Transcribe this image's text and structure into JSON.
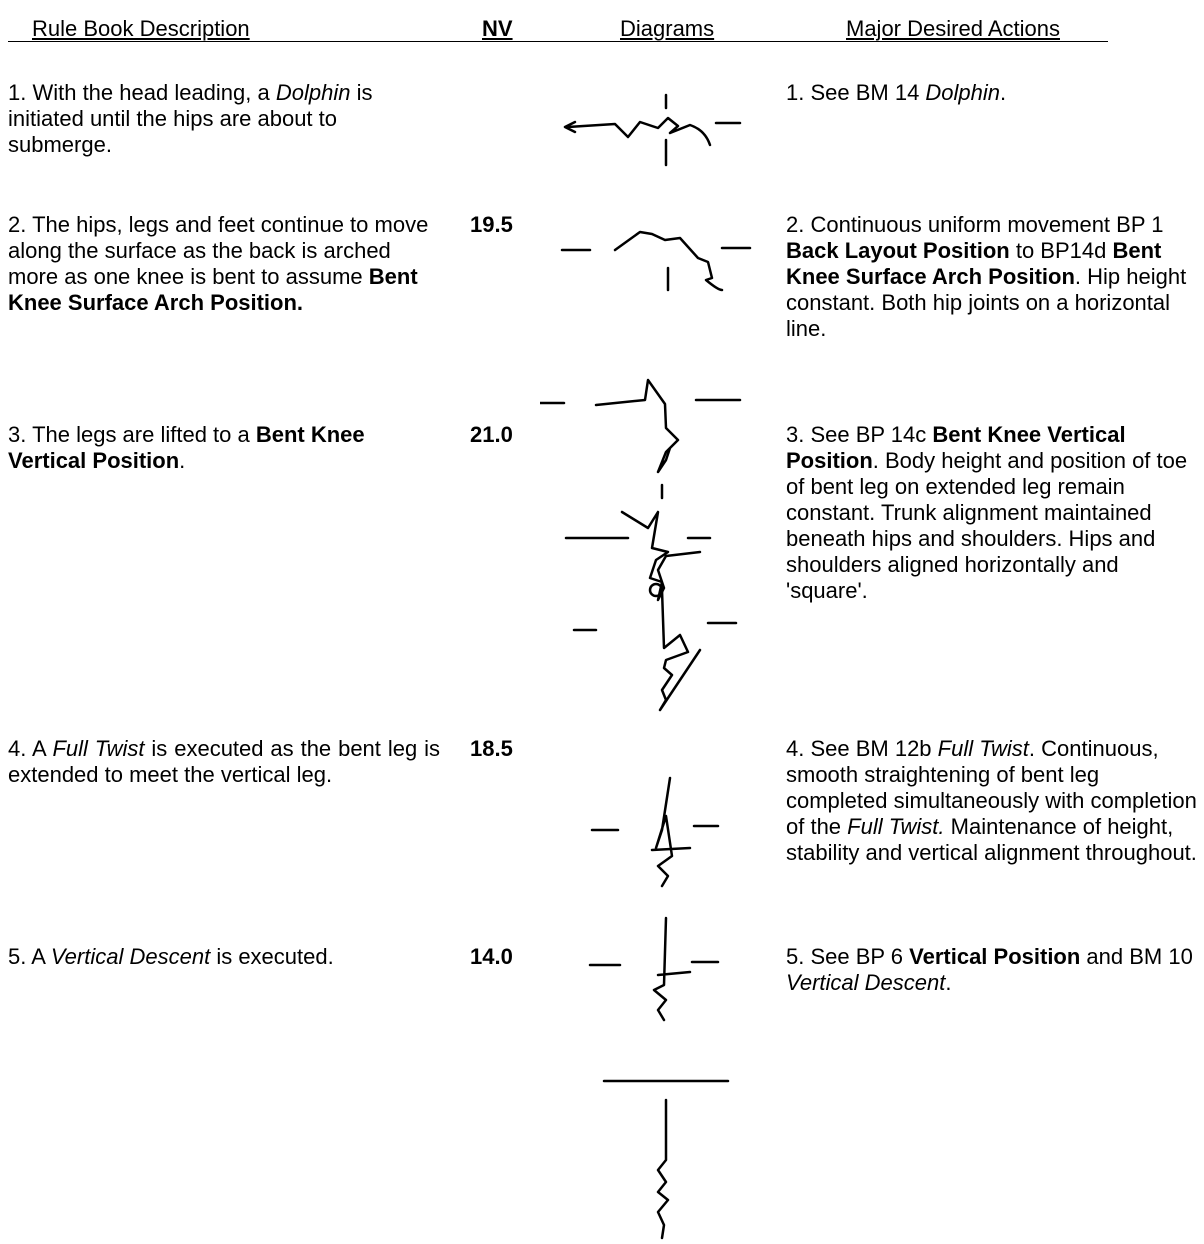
{
  "header": {
    "description": "Rule Book Description",
    "nv": "NV",
    "diagrams": "Diagrams",
    "actions": "Major Desired Actions"
  },
  "rows": [
    {
      "description": [
        {
          "text": "1.  With the head leading, a "
        },
        {
          "text": "Dolphin",
          "italic": true
        },
        {
          "text": " is initiated until the hips are about to submerge."
        }
      ],
      "actions": [
        {
          "text": "1. See BM 14 "
        },
        {
          "text": "Dolphin",
          "italic": true
        },
        {
          "text": "."
        }
      ]
    },
    {
      "description": [
        {
          "text": "2.  The hips, legs and feet continue to move along the surface as the back is arched more as one knee is bent to assume "
        },
        {
          "text": "Bent Knee Surface Arch Position.",
          "bold": true
        }
      ],
      "nv": "19.5",
      "actions": [
        {
          "text": "2.  Continuous uniform movement BP 1 "
        },
        {
          "text": "Back Layout Position",
          "bold": true
        },
        {
          "text": " to BP14d "
        },
        {
          "text": "Bent Knee Surface Arch Position",
          "bold": true
        },
        {
          "text": ". Hip height constant.  Both hip joints on a horizontal line."
        }
      ]
    },
    {
      "description": [
        {
          "text": "3.  The legs are lifted to a "
        },
        {
          "text": "Bent Knee Vertical Position",
          "bold": true
        },
        {
          "text": "."
        }
      ],
      "nv": "21.0",
      "actions": [
        {
          "text": "3. See BP 14c "
        },
        {
          "text": "Bent Knee Vertical Position",
          "bold": true
        },
        {
          "text": ".  Body height and position of toe of bent leg on extended leg remain constant.  Trunk alignment maintained beneath hips and shoulders.  Hips and shoulders aligned horizontally and 'square'."
        }
      ]
    },
    {
      "description": [
        {
          "text": "4. A "
        },
        {
          "text": "Full Twist",
          "italic": true
        },
        {
          "text": " is executed as the bent leg is extended to meet the vertical leg."
        }
      ],
      "nv": "18.5",
      "actions": [
        {
          "text": "4. See BM 12b "
        },
        {
          "text": "Full Twist",
          "italic": true
        },
        {
          "text": ".  Continuous, smooth straightening of bent leg completed simultaneously with completion of the "
        },
        {
          "text": "Full Twist.",
          "italic": true
        },
        {
          "text": "  Maintenance of height, stability and vertical alignment throughout."
        }
      ]
    },
    {
      "description": [
        {
          "text": "5.  A "
        },
        {
          "text": "Vertical Descent",
          "italic": true
        },
        {
          "text": " is executed."
        }
      ],
      "nv": "14.0",
      "actions": [
        {
          "text": "5.  See BP 6 "
        },
        {
          "text": "Vertical Position",
          "bold": true
        },
        {
          "text": " and BM 10 "
        },
        {
          "text": "Vertical Descent",
          "italic": true
        },
        {
          "text": "."
        }
      ]
    }
  ]
}
